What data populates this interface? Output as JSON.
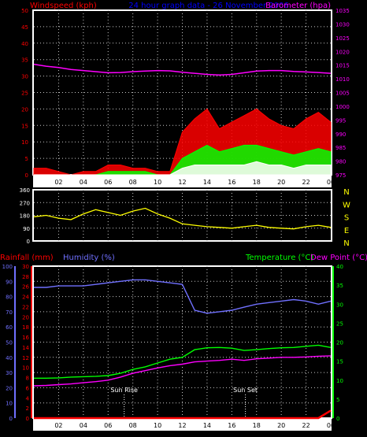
{
  "chart_data": [
    {
      "type": "line",
      "title": "24 hour graph data - 26 November 2006",
      "left_axis_label": "Windspeed (kph)",
      "right_axis_label": "Barometer (hpa)",
      "x_tick_labels": [
        "02",
        "04",
        "06",
        "08",
        "10",
        "12",
        "14",
        "16",
        "18",
        "20",
        "22",
        "00"
      ],
      "left_ylim": [
        0,
        50
      ],
      "left_ticks": [
        0,
        5,
        10,
        15,
        20,
        25,
        30,
        35,
        40,
        45,
        50
      ],
      "right_ylim": [
        975,
        1035
      ],
      "right_ticks": [
        975,
        980,
        985,
        990,
        995,
        1000,
        1005,
        1010,
        1015,
        1020,
        1025,
        1030,
        1035
      ],
      "grid": true,
      "x_hours": [
        0,
        1,
        2,
        3,
        4,
        5,
        6,
        7,
        8,
        9,
        10,
        11,
        12,
        13,
        14,
        15,
        16,
        17,
        18,
        19,
        20,
        21,
        22,
        23,
        24
      ],
      "series": [
        {
          "axis": "right",
          "color": "#ff00ff",
          "values": [
            1015.3,
            1014.6,
            1014.1,
            1013.4,
            1013.0,
            1012.6,
            1012.2,
            1012.3,
            1012.6,
            1012.8,
            1013.0,
            1012.9,
            1012.4,
            1012.0,
            1011.6,
            1011.4,
            1011.6,
            1012.2,
            1012.8,
            1013.0,
            1013.0,
            1012.7,
            1012.5,
            1012.3,
            1012.0
          ]
        },
        {
          "axis": "left",
          "color": "#ff0000",
          "values": [
            2,
            2,
            1,
            0,
            1,
            1,
            3,
            3,
            2,
            2,
            1,
            1,
            13,
            17,
            20,
            14,
            16,
            18,
            20,
            17,
            15,
            14,
            17,
            19,
            16
          ]
        },
        {
          "axis": "left",
          "color": "#00ff00",
          "values": [
            0,
            0,
            0,
            0,
            0,
            0,
            1,
            1,
            1,
            1,
            0,
            0,
            5,
            7,
            9,
            7,
            8,
            9,
            9,
            8,
            7,
            6,
            7,
            8,
            7
          ]
        },
        {
          "axis": "left",
          "color": "#ffffff",
          "values": [
            0,
            0,
            0,
            0,
            0,
            0,
            0,
            0,
            0,
            0,
            0,
            0,
            2,
            3,
            3,
            3,
            3,
            3,
            4,
            3,
            3,
            2,
            3,
            3,
            3
          ]
        }
      ]
    },
    {
      "type": "scatter",
      "left_ticks": [
        0,
        90,
        180,
        270,
        360
      ],
      "ylim": [
        0,
        360
      ],
      "right_labels": [
        "N",
        "W",
        "S",
        "E",
        "N"
      ],
      "x_tick_labels": [
        "02",
        "04",
        "06",
        "08",
        "10",
        "12",
        "14",
        "16",
        "18",
        "20",
        "22",
        "00"
      ],
      "grid": true,
      "series": [
        {
          "color": "#ffff00",
          "x_hours": [
            0,
            1,
            2,
            3,
            4,
            5,
            6,
            7,
            8,
            9,
            10,
            11,
            12,
            13,
            14,
            15,
            16,
            17,
            18,
            19,
            20,
            21,
            22,
            23,
            24
          ],
          "values": [
            170,
            180,
            160,
            150,
            190,
            220,
            200,
            180,
            210,
            230,
            190,
            160,
            120,
            110,
            100,
            95,
            90,
            100,
            110,
            95,
            90,
            85,
            100,
            110,
            95
          ]
        }
      ]
    },
    {
      "type": "line",
      "left_axis_label_1": "Rainfall (mm)",
      "left_axis_label_2": "Humidity (%)",
      "right_axis_label_1": "Temperature (°C)",
      "right_axis_label_2": "Dew Point (°C)",
      "x_tick_labels": [
        "02",
        "04",
        "06",
        "08",
        "10",
        "12",
        "14",
        "16",
        "18",
        "20",
        "22",
        "00"
      ],
      "humidity_ticks": [
        0,
        10,
        20,
        30,
        40,
        50,
        60,
        70,
        80,
        90,
        100
      ],
      "rain_ticks": [
        0,
        2,
        4,
        6,
        8,
        10,
        12,
        14,
        16,
        18,
        20,
        22,
        24,
        26,
        28,
        30
      ],
      "temp_ticks": [
        0,
        5,
        10,
        15,
        20,
        25,
        30,
        35,
        40
      ],
      "humidity_ylim": [
        0,
        100
      ],
      "rain_ylim": [
        0,
        30
      ],
      "temp_ylim": [
        0,
        40
      ],
      "grid": true,
      "annotations": [
        {
          "label": "Sun Rise",
          "hour": 7.3
        },
        {
          "label": "Sun Set",
          "hour": 17.1
        }
      ],
      "x_hours": [
        0,
        1,
        2,
        3,
        4,
        5,
        6,
        7,
        8,
        9,
        10,
        11,
        12,
        13,
        14,
        15,
        16,
        17,
        18,
        19,
        20,
        21,
        22,
        23,
        24
      ],
      "series": [
        {
          "name": "Humidity (%)",
          "axis": "humidity",
          "color": "#7070ff",
          "values": [
            86,
            86,
            87,
            87,
            87,
            88,
            89,
            90,
            91,
            91,
            90,
            89,
            88,
            71,
            69,
            70,
            71,
            73,
            75,
            76,
            77,
            78,
            77,
            75,
            77
          ]
        },
        {
          "name": "Temperature (°C)",
          "axis": "temp",
          "color": "#00ff00",
          "values": [
            10.5,
            10.5,
            10.6,
            10.8,
            10.9,
            11,
            11.2,
            11.8,
            12.8,
            13.5,
            14.5,
            15.5,
            16,
            18,
            18.5,
            18.6,
            18.4,
            17.8,
            18,
            18.3,
            18.5,
            18.6,
            18.9,
            19.2,
            18.6
          ]
        },
        {
          "name": "Dew Point (°C)",
          "axis": "temp",
          "color": "#ff00ff",
          "values": [
            8.5,
            8.6,
            8.8,
            9,
            9.3,
            9.6,
            10,
            10.8,
            11.8,
            12.5,
            13.2,
            13.8,
            14.2,
            14.8,
            15,
            15.2,
            15.5,
            15.2,
            15.6,
            15.8,
            16,
            16,
            16.1,
            16.3,
            16.4
          ]
        },
        {
          "name": "Rainfall (mm)",
          "axis": "rain",
          "color": "#ff0000",
          "values": [
            0,
            0,
            0,
            0,
            0,
            0,
            0,
            0,
            0,
            0,
            0,
            0,
            0,
            0,
            0,
            0,
            0,
            0,
            0,
            0,
            0,
            0,
            0,
            0,
            1.5
          ]
        }
      ]
    }
  ],
  "colors": {
    "frame": "#ffffff",
    "grid": "#c8c8c8",
    "title": "#0000ff",
    "wind_axis": "#ff0000",
    "baro_axis": "#ff00ff",
    "dir_axis": "#ffff00",
    "tick_text": "#000000",
    "rain_axis": "#ff0000",
    "hum_axis": "#7070ff",
    "temp_axis": "#00ff00",
    "dew_axis": "#ff00ff"
  }
}
